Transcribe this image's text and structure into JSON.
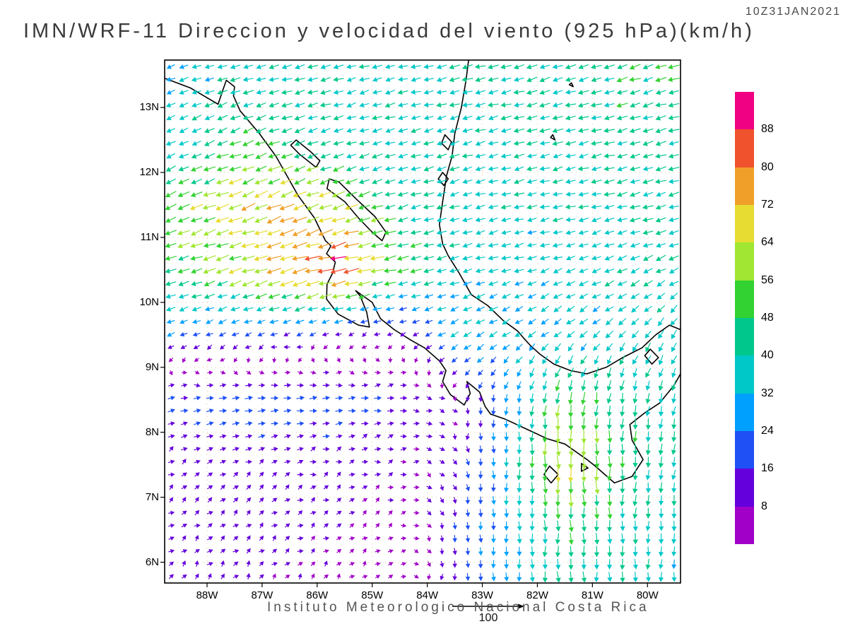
{
  "header": {
    "datetime": "10Z31JAN2021",
    "title": "IMN/WRF-11 Direccion y velocidad del viento (925 hPa)(km/h)"
  },
  "footer": {
    "institute": "Instituto Meteorologico Nacional Costa Rica",
    "scale_label": "100"
  },
  "map": {
    "lat_ticks": [
      "13N",
      "12N",
      "11N",
      "10N",
      "9N",
      "8N",
      "7N",
      "6N"
    ],
    "lat_tick_values": [
      13,
      12,
      11,
      10,
      9,
      8,
      7,
      6
    ],
    "lon_ticks": [
      "88W",
      "87W",
      "86W",
      "85W",
      "84W",
      "83W",
      "82W",
      "81W",
      "80W"
    ],
    "lon_tick_values": [
      -88,
      -87,
      -86,
      -85,
      -84,
      -83,
      -82,
      -81,
      -80
    ],
    "coast_color": "#000000",
    "gridline_color": "#cc9933",
    "coastlines": [
      {
        "name": "pacific-coast",
        "closed": false,
        "points": [
          [
            13.45,
            -88.77
          ],
          [
            13.3,
            -88.3
          ],
          [
            13.15,
            -88.0
          ],
          [
            13.05,
            -87.8
          ],
          [
            13.25,
            -87.72
          ],
          [
            13.42,
            -87.65
          ],
          [
            13.32,
            -87.5
          ],
          [
            13.18,
            -87.52
          ],
          [
            12.95,
            -87.4
          ],
          [
            12.6,
            -87.05
          ],
          [
            12.25,
            -86.75
          ],
          [
            11.95,
            -86.55
          ],
          [
            11.65,
            -86.35
          ],
          [
            11.3,
            -86.05
          ],
          [
            10.95,
            -85.85
          ],
          [
            10.87,
            -85.75
          ],
          [
            10.75,
            -85.83
          ],
          [
            10.62,
            -85.67
          ],
          [
            10.45,
            -85.72
          ],
          [
            10.28,
            -85.82
          ],
          [
            10.05,
            -85.83
          ],
          [
            9.82,
            -85.62
          ],
          [
            9.65,
            -85.25
          ],
          [
            9.62,
            -85.05
          ],
          [
            9.85,
            -85.1
          ],
          [
            10.1,
            -85.22
          ],
          [
            10.18,
            -85.3
          ],
          [
            10.0,
            -85.0
          ],
          [
            9.75,
            -84.85
          ],
          [
            9.58,
            -84.6
          ],
          [
            9.42,
            -84.3
          ],
          [
            9.3,
            -84.05
          ],
          [
            9.1,
            -83.78
          ],
          [
            8.95,
            -83.66
          ],
          [
            8.78,
            -83.72
          ],
          [
            8.58,
            -83.58
          ],
          [
            8.42,
            -83.33
          ],
          [
            8.6,
            -83.22
          ],
          [
            8.78,
            -83.28
          ],
          [
            8.62,
            -83.05
          ],
          [
            8.4,
            -82.95
          ],
          [
            8.28,
            -82.85
          ],
          [
            8.2,
            -82.58
          ],
          [
            8.05,
            -82.2
          ],
          [
            7.9,
            -81.82
          ],
          [
            7.82,
            -81.5
          ],
          [
            7.58,
            -81.1
          ],
          [
            7.48,
            -80.95
          ],
          [
            7.22,
            -80.6
          ],
          [
            7.32,
            -80.28
          ],
          [
            7.58,
            -80.08
          ],
          [
            7.88,
            -80.28
          ],
          [
            8.12,
            -80.32
          ],
          [
            8.3,
            -80.05
          ],
          [
            8.45,
            -79.78
          ],
          [
            8.72,
            -79.52
          ],
          [
            8.9,
            -79.4
          ]
        ]
      },
      {
        "name": "caribbean-coast",
        "closed": false,
        "points": [
          [
            13.73,
            -83.25
          ],
          [
            13.4,
            -83.3
          ],
          [
            13.0,
            -83.38
          ],
          [
            12.6,
            -83.5
          ],
          [
            12.25,
            -83.55
          ],
          [
            11.95,
            -83.65
          ],
          [
            11.55,
            -83.72
          ],
          [
            11.2,
            -83.78
          ],
          [
            10.9,
            -83.72
          ],
          [
            10.72,
            -83.62
          ],
          [
            10.45,
            -83.42
          ],
          [
            10.12,
            -83.2
          ],
          [
            9.95,
            -82.9
          ],
          [
            9.72,
            -82.62
          ],
          [
            9.56,
            -82.36
          ],
          [
            9.45,
            -82.25
          ],
          [
            9.33,
            -82.12
          ],
          [
            9.2,
            -81.95
          ],
          [
            9.05,
            -81.7
          ],
          [
            8.95,
            -81.4
          ],
          [
            8.9,
            -81.1
          ],
          [
            9.0,
            -80.75
          ],
          [
            9.15,
            -80.45
          ],
          [
            9.3,
            -80.1
          ],
          [
            9.5,
            -79.85
          ],
          [
            9.65,
            -79.6
          ],
          [
            9.58,
            -79.4
          ]
        ]
      },
      {
        "name": "lake-nicaragua",
        "closed": true,
        "points": [
          [
            11.75,
            -85.82
          ],
          [
            11.55,
            -85.5
          ],
          [
            11.3,
            -85.25
          ],
          [
            11.08,
            -85.0
          ],
          [
            10.95,
            -84.82
          ],
          [
            11.08,
            -84.75
          ],
          [
            11.32,
            -84.95
          ],
          [
            11.6,
            -85.3
          ],
          [
            11.85,
            -85.6
          ],
          [
            11.9,
            -85.78
          ]
        ]
      },
      {
        "name": "lake-managua",
        "closed": true,
        "points": [
          [
            12.5,
            -86.38
          ],
          [
            12.32,
            -86.12
          ],
          [
            12.18,
            -85.95
          ],
          [
            12.08,
            -86.02
          ],
          [
            12.28,
            -86.32
          ],
          [
            12.42,
            -86.48
          ]
        ]
      },
      {
        "name": "pearl-lagoon",
        "closed": true,
        "points": [
          [
            12.58,
            -83.68
          ],
          [
            12.47,
            -83.56
          ],
          [
            12.35,
            -83.62
          ],
          [
            12.45,
            -83.74
          ]
        ]
      },
      {
        "name": "bluefields-lagoon",
        "closed": true,
        "points": [
          [
            12.0,
            -83.72
          ],
          [
            11.9,
            -83.62
          ],
          [
            11.8,
            -83.7
          ],
          [
            11.9,
            -83.8
          ]
        ]
      },
      {
        "name": "coiba-island",
        "closed": true,
        "points": [
          [
            7.48,
            -81.78
          ],
          [
            7.35,
            -81.62
          ],
          [
            7.22,
            -81.75
          ],
          [
            7.35,
            -81.88
          ]
        ]
      },
      {
        "name": "cebaco-island",
        "closed": true,
        "points": [
          [
            7.52,
            -81.2
          ],
          [
            7.45,
            -81.08
          ],
          [
            7.4,
            -81.2
          ]
        ]
      },
      {
        "name": "san-andres-island",
        "closed": true,
        "points": [
          [
            12.58,
            -81.72
          ],
          [
            12.5,
            -81.68
          ],
          [
            12.54,
            -81.76
          ]
        ]
      },
      {
        "name": "providencia-island",
        "closed": true,
        "points": [
          [
            13.38,
            -81.38
          ],
          [
            13.32,
            -81.35
          ],
          [
            13.35,
            -81.42
          ]
        ]
      },
      {
        "name": "gatun-lake",
        "closed": true,
        "points": [
          [
            9.28,
            -79.95
          ],
          [
            9.15,
            -79.8
          ],
          [
            9.05,
            -79.92
          ],
          [
            9.18,
            -80.05
          ]
        ]
      }
    ]
  },
  "chart_data": {
    "type": "vector_field",
    "title": "IMN/WRF-11 Direccion y velocidad del viento (925 hPa)(km/h)",
    "valid_time": "10Z31JAN2021",
    "units": "km/h",
    "level_hpa": 925,
    "lat_range": [
      5.68,
      13.73
    ],
    "lon_range": [
      -88.77,
      -79.4
    ],
    "colorbar": {
      "levels": [
        8,
        16,
        24,
        32,
        40,
        48,
        56,
        64,
        72,
        80,
        88
      ],
      "colors": [
        "#A000C8",
        "#6400DC",
        "#1E50F5",
        "#00A0FF",
        "#00C8C8",
        "#00C88C",
        "#32D232",
        "#A0E632",
        "#E6DC32",
        "#F0A028",
        "#F0522D",
        "#F00082"
      ]
    },
    "grid": {
      "lats": [
        5.5,
        6.5,
        7.5,
        8.5,
        9.5,
        10.5,
        11.5,
        12.5,
        13.5
      ],
      "lons": [
        -88.5,
        -87.5,
        -86.5,
        -85.5,
        -84.5,
        -83.5,
        -82.5,
        -81.5,
        -80.5,
        -79.5
      ],
      "u": [
        [
          5,
          5,
          5,
          4,
          3,
          0,
          0,
          2,
          0,
          -2
        ],
        [
          8,
          8,
          8,
          6,
          5,
          2,
          0,
          0,
          0,
          -3
        ],
        [
          10,
          10,
          10,
          8,
          8,
          5,
          0,
          5,
          0,
          -5
        ],
        [
          18,
          22,
          22,
          20,
          15,
          5,
          -5,
          -8,
          -5,
          -10
        ],
        [
          -20,
          -18,
          -15,
          -10,
          -8,
          -25,
          -28,
          -25,
          -25,
          -18
        ],
        [
          -45,
          -55,
          -70,
          -82,
          -45,
          -35,
          -32,
          -32,
          -35,
          -38
        ],
        [
          -50,
          -60,
          -66,
          -55,
          -40,
          -35,
          -35,
          -35,
          -38,
          -40
        ],
        [
          -30,
          -45,
          -40,
          -35,
          -35,
          -35,
          -38,
          -38,
          -40,
          -40
        ],
        [
          -30,
          -35,
          -38,
          -35,
          -35,
          -38,
          -40,
          -40,
          -42,
          -42
        ]
      ],
      "v": [
        [
          8,
          8,
          6,
          5,
          3,
          -15,
          -28,
          -40,
          -38,
          -32
        ],
        [
          6,
          6,
          5,
          5,
          3,
          -15,
          -30,
          -46,
          -40,
          -35
        ],
        [
          5,
          5,
          4,
          4,
          2,
          -10,
          -30,
          -66,
          -46,
          -40
        ],
        [
          3,
          3,
          2,
          2,
          0,
          -5,
          -25,
          -52,
          -42,
          -35
        ],
        [
          -8,
          -8,
          -6,
          -5,
          -4,
          -15,
          -18,
          -20,
          -25,
          -30
        ],
        [
          -15,
          -18,
          -20,
          -16,
          -10,
          -10,
          -10,
          -12,
          -15,
          -18
        ],
        [
          -20,
          -22,
          -25,
          -20,
          -12,
          -10,
          -8,
          -8,
          -10,
          -10
        ],
        [
          -15,
          -18,
          -15,
          -12,
          -10,
          -10,
          -10,
          -10,
          -10,
          -10
        ],
        [
          -10,
          -12,
          -10,
          -10,
          -8,
          -10,
          -10,
          -12,
          -12,
          -12
        ]
      ]
    },
    "display": {
      "arrow_cols": 40,
      "arrow_rows": 41,
      "grid_dotted": true,
      "legend_position": "right"
    }
  }
}
